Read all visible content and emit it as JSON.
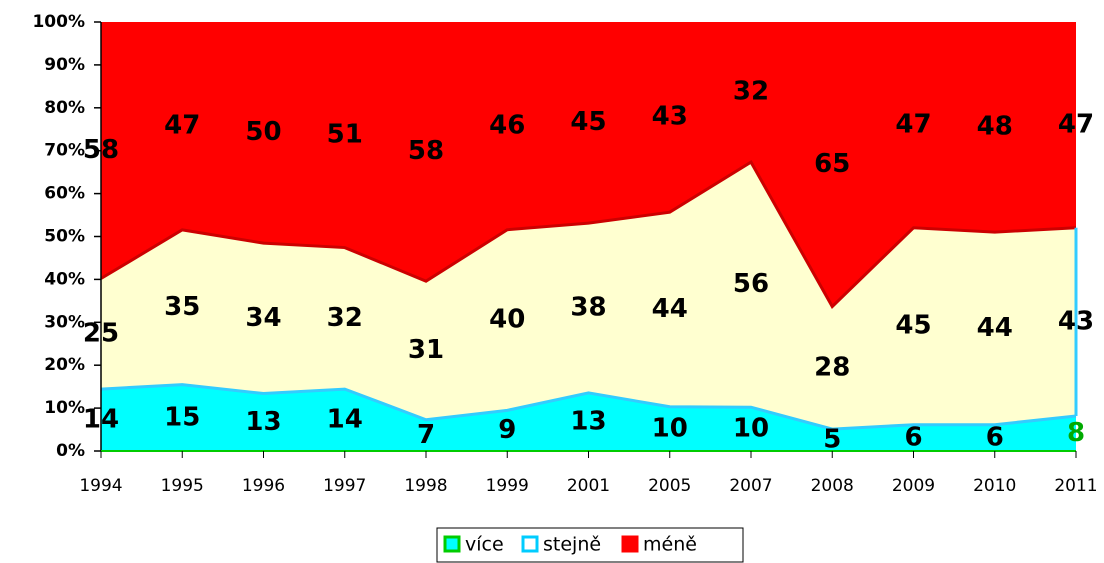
{
  "chart_data": {
    "type": "stacked_area_100",
    "categories": [
      "1994",
      "1995",
      "1996",
      "1997",
      "1998",
      "1999",
      "2001",
      "2005",
      "2007",
      "2008",
      "2009",
      "2010",
      "2011"
    ],
    "series": [
      {
        "name": "více",
        "color": "#00ffff",
        "border": "#00cc00",
        "values": [
          14,
          15,
          13,
          14,
          7,
          9,
          13,
          10,
          10,
          5,
          6,
          6,
          8
        ]
      },
      {
        "name": "stejně",
        "color": "#ffffd0",
        "border": "#00ccff",
        "values": [
          25,
          35,
          34,
          32,
          31,
          40,
          38,
          44,
          56,
          28,
          45,
          44,
          43
        ]
      },
      {
        "name": "méně",
        "color": "#ff0000",
        "border": "#ff0000",
        "values": [
          58,
          47,
          50,
          51,
          58,
          46,
          45,
          43,
          32,
          65,
          47,
          48,
          47
        ]
      }
    ],
    "ylim": [
      0,
      100
    ],
    "yticks": [
      {
        "value": 0,
        "label": "0%"
      },
      {
        "value": 10,
        "label": "10%"
      },
      {
        "value": 20,
        "label": "20%"
      },
      {
        "value": 30,
        "label": "30%"
      },
      {
        "value": 40,
        "label": "40%"
      },
      {
        "value": 50,
        "label": "50%"
      },
      {
        "value": 60,
        "label": "60%"
      },
      {
        "value": 70,
        "label": "70%"
      },
      {
        "value": 80,
        "label": "80%"
      },
      {
        "value": 90,
        "label": "90%"
      },
      {
        "value": 100,
        "label": "100%"
      }
    ],
    "legend": "bottom"
  }
}
